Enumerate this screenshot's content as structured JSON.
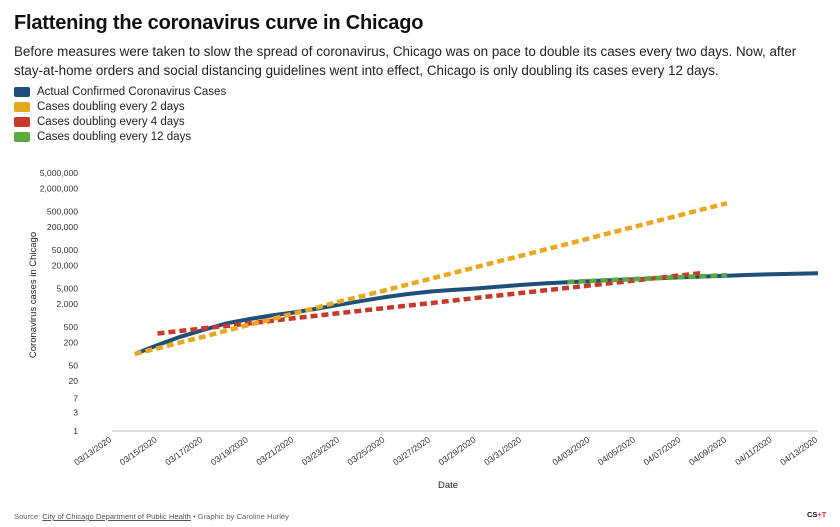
{
  "header": {
    "title": "Flattening the coronavirus curve in Chicago",
    "subtitle": "Before measures were taken to slow the spread of coronavirus, Chicago was on pace to double its cases every two days. Now, after stay-at-home orders and social distancing guidelines went into effect, Chicago is only doubling its cases every 12 days."
  },
  "footer": {
    "source_label": "Source: ",
    "source_link": "City of Chicago Department of Public Health",
    "credit": " • Graphic by Caroline Hurley",
    "logo_main": "CS",
    "logo_plus": "+T"
  },
  "chart_data": {
    "type": "line",
    "title": "Flattening the coronavirus curve in Chicago",
    "xlabel": "Date",
    "ylabel": "Coronavirus cases in Chicago",
    "yscale": "log",
    "ylim": [
      1,
      5000000
    ],
    "xlim_day": [
      0,
      31
    ],
    "yticks": [
      1,
      3,
      7,
      20,
      50,
      200,
      500,
      2000,
      5000,
      20000,
      50000,
      200000,
      500000,
      2000000,
      5000000
    ],
    "ytick_labels": [
      "1",
      "3",
      "7",
      "20",
      "50",
      "200",
      "500",
      "2,000",
      "5,000",
      "20,000",
      "50,000",
      "200,000",
      "500,000",
      "2,000,000",
      "5,000,000"
    ],
    "xticks": [
      {
        "day": 0,
        "label": "03/13/2020"
      },
      {
        "day": 2,
        "label": "03/15/2020"
      },
      {
        "day": 4,
        "label": "03/17/2020"
      },
      {
        "day": 6,
        "label": "03/19/2020"
      },
      {
        "day": 8,
        "label": "03/21/2020"
      },
      {
        "day": 10,
        "label": "03/23/2020"
      },
      {
        "day": 12,
        "label": "03/25/2020"
      },
      {
        "day": 14,
        "label": "03/27/2020"
      },
      {
        "day": 16,
        "label": "03/29/2020"
      },
      {
        "day": 18,
        "label": "03/31/2020"
      },
      {
        "day": 21,
        "label": "04/03/2020"
      },
      {
        "day": 23,
        "label": "04/05/2020"
      },
      {
        "day": 25,
        "label": "04/07/2020"
      },
      {
        "day": 27,
        "label": "04/09/2020"
      },
      {
        "day": 29,
        "label": "04/11/2020"
      },
      {
        "day": 31,
        "label": "04/13/2020"
      }
    ],
    "series": [
      {
        "name": "Actual Confirmed Coronavirus Cases",
        "color": "#1f4e79",
        "style": "solid",
        "points": [
          [
            1,
            100
          ],
          [
            2,
            170
          ],
          [
            3,
            280
          ],
          [
            4,
            420
          ],
          [
            5,
            620
          ],
          [
            6,
            800
          ],
          [
            7,
            1000
          ],
          [
            8,
            1200
          ],
          [
            9,
            1500
          ],
          [
            10,
            1900
          ],
          [
            11,
            2400
          ],
          [
            12,
            3000
          ],
          [
            13,
            3600
          ],
          [
            14,
            4200
          ],
          [
            15,
            4600
          ],
          [
            16,
            5000
          ],
          [
            17,
            5600
          ],
          [
            18,
            6200
          ],
          [
            19,
            6800
          ],
          [
            20,
            7300
          ],
          [
            21,
            7800
          ],
          [
            22,
            8300
          ],
          [
            23,
            8700
          ],
          [
            24,
            9200
          ],
          [
            25,
            9800
          ],
          [
            26,
            10300
          ],
          [
            27,
            10800
          ],
          [
            28,
            11300
          ],
          [
            29,
            11800
          ],
          [
            30,
            12100
          ],
          [
            31,
            12500
          ]
        ]
      },
      {
        "name": "Cases doubling every 2 days",
        "color": "#e8a820",
        "style": "dashed",
        "points": [
          [
            1,
            100
          ],
          [
            2,
            140
          ],
          [
            3,
            200
          ],
          [
            4,
            280
          ],
          [
            5,
            400
          ],
          [
            6,
            570
          ],
          [
            7,
            800
          ],
          [
            8,
            1130
          ],
          [
            9,
            1600
          ],
          [
            10,
            2300
          ],
          [
            11,
            3200
          ],
          [
            12,
            4500
          ],
          [
            13,
            6400
          ],
          [
            14,
            9000
          ],
          [
            15,
            12800
          ],
          [
            16,
            18000
          ],
          [
            17,
            25600
          ],
          [
            18,
            36000
          ],
          [
            19,
            51000
          ],
          [
            20,
            72000
          ],
          [
            21,
            102000
          ],
          [
            22,
            145000
          ],
          [
            23,
            205000
          ],
          [
            24,
            290000
          ],
          [
            25,
            410000
          ],
          [
            26,
            580000
          ],
          [
            27,
            820000
          ]
        ]
      },
      {
        "name": "Cases doubling every 4 days",
        "color": "#c8392b",
        "style": "dashed",
        "points": [
          [
            2,
            340
          ],
          [
            4,
            460
          ],
          [
            6,
            620
          ],
          [
            8,
            850
          ],
          [
            10,
            1150
          ],
          [
            12,
            1560
          ],
          [
            14,
            2100
          ],
          [
            16,
            2850
          ],
          [
            18,
            3850
          ],
          [
            20,
            5200
          ],
          [
            22,
            7000
          ],
          [
            24,
            9500
          ],
          [
            26,
            12800
          ]
        ]
      },
      {
        "name": "Cases doubling every 12 days",
        "color": "#5aab3c",
        "style": "dashed",
        "points": [
          [
            20,
            7400
          ],
          [
            22,
            8400
          ],
          [
            24,
            9400
          ],
          [
            26,
            10500
          ],
          [
            27,
            11200
          ]
        ]
      }
    ]
  }
}
